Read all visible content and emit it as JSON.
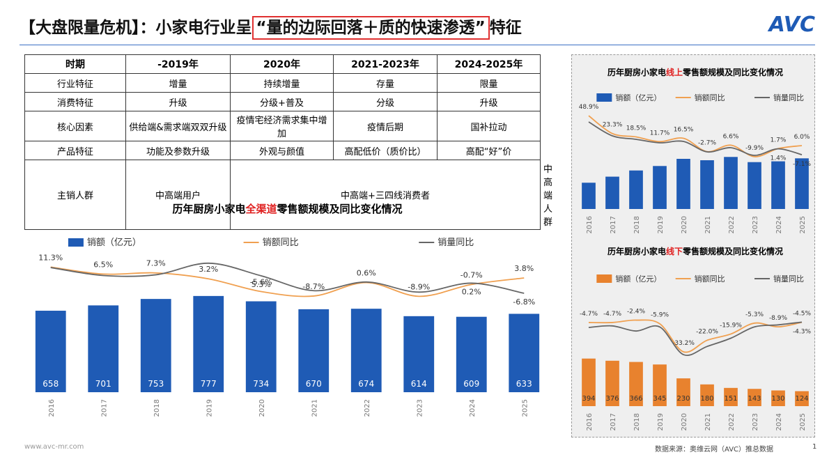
{
  "header": {
    "title_pre": "【大盘限量危机】：小家电行业呈",
    "title_highlight": "“量的边际回落＋质的快速渗透”",
    "title_post": "特征",
    "logo": "AVC"
  },
  "table": {
    "header": [
      "时期",
      "-2019年",
      "2020年",
      "2021-2023年",
      "2024-2025年"
    ],
    "rows": [
      [
        "行业特征",
        "增量",
        "持续增量",
        "存量",
        "限量"
      ],
      [
        "消费特征",
        "升级",
        "分级+普及",
        "分级",
        "升级"
      ],
      [
        "核心因素",
        "供给端&需求端双双升级",
        "疫情宅经济需求集中增加",
        "疫情后期",
        "国补拉动"
      ],
      [
        "产品特征",
        "功能及参数升级",
        "外观与颜值",
        "高配低价（质价比）",
        "高配“好”价"
      ],
      [
        "主销人群",
        "中高端用户",
        "中高端+三四线消费者",
        "中高端人群"
      ]
    ]
  },
  "chart_data": [
    {
      "type": "bar",
      "title_parts": [
        "历年厨房小家电",
        "全渠道",
        "零售额规模及同比变化情况"
      ],
      "categories": [
        "2016",
        "2017",
        "2018",
        "2019",
        "2020",
        "2021",
        "2022",
        "2023",
        "2024",
        "2025"
      ],
      "series": [
        {
          "name": "销额（亿元）",
          "color": "#1f5bb5",
          "values": [
            658,
            701,
            753,
            777,
            734,
            670,
            674,
            614,
            609,
            633
          ]
        },
        {
          "name": "销额同比",
          "type": "line",
          "axis": "y2",
          "color": "#f0a050",
          "values": [
            11.3,
            6.5,
            7.3,
            3.2,
            -5.6,
            -8.7,
            0.6,
            -8.9,
            -0.7,
            3.8
          ],
          "value_labels": [
            "11.3%",
            "6.5%",
            "7.3%",
            "3.2%",
            "-5.6%",
            "-8.7%",
            "0.6%",
            "-8.9%",
            "-0.7%",
            "3.8%"
          ]
        },
        {
          "name": "销量同比",
          "type": "line",
          "axis": "y2",
          "color": "#666666",
          "values": [
            11,
            5.5,
            6,
            14,
            5.3,
            -5,
            1,
            -6,
            0.2,
            -6.8
          ],
          "value_labels": [
            null,
            null,
            null,
            null,
            "5.3%",
            null,
            null,
            null,
            "0.2%",
            "-6.8%"
          ]
        }
      ],
      "ylim": [
        0,
        900
      ],
      "y2lim": [
        -15,
        25
      ]
    },
    {
      "type": "bar",
      "title_parts": [
        "历年厨房小家电",
        "线上",
        "零售额规模及同比变化情况"
      ],
      "categories": [
        "2016",
        "2017",
        "2018",
        "2019",
        "2020",
        "2021",
        "2022",
        "2023",
        "2024",
        "2025"
      ],
      "series": [
        {
          "name": "销额（亿元）",
          "color": "#1f5bb5",
          "values": [
            264,
            325,
            387,
            432,
            504,
            490,
            523,
            471,
            479,
            509
          ]
        },
        {
          "name": "销额同比",
          "type": "line",
          "axis": "y2",
          "color": "#f0a050",
          "values": [
            48.9,
            23.3,
            18.5,
            11.7,
            16.5,
            -2.7,
            6.6,
            -9.9,
            1.7,
            6.0
          ],
          "value_labels": [
            "48.9%",
            "23.3%",
            "18.5%",
            "11.7%",
            "16.5%",
            "-2.7%",
            "6.6%",
            "-9.9%",
            "1.7%",
            "6.0%"
          ]
        },
        {
          "name": "销量同比",
          "type": "line",
          "axis": "y2",
          "color": "#666666",
          "values": [
            40,
            20,
            15,
            10,
            12,
            -3,
            3,
            -8,
            1.4,
            -7.1
          ],
          "value_labels": [
            null,
            null,
            null,
            null,
            null,
            null,
            null,
            null,
            "1.4%",
            "-7.1%"
          ]
        }
      ],
      "ylim": [
        0,
        700
      ],
      "y2lim": [
        -20,
        60
      ]
    },
    {
      "type": "bar",
      "title_parts": [
        "历年厨房小家电",
        "线下",
        "零售额规模及同比变化情况"
      ],
      "categories": [
        "2016",
        "2017",
        "2018",
        "2019",
        "2020",
        "2021",
        "2022",
        "2023",
        "2024",
        "2025"
      ],
      "series": [
        {
          "name": "销额（亿元）",
          "color": "#e8822e",
          "values": [
            394,
            376,
            366,
            345,
            230,
            180,
            151,
            143,
            130,
            124
          ]
        },
        {
          "name": "销额同比",
          "type": "line",
          "axis": "y2",
          "color": "#f0a050",
          "values": [
            -4.7,
            -4.7,
            -2.4,
            -5.9,
            -33.2,
            -22.0,
            -15.9,
            -5.3,
            -8.9,
            -4.5
          ],
          "value_labels": [
            "-4.7%",
            "-4.7%",
            "-2.4%",
            "-5.9%",
            "-33.2%",
            "-22.0%",
            "-15.9%",
            "-5.3%",
            "-8.9%",
            "-4.5%"
          ]
        },
        {
          "name": "销量同比",
          "type": "line",
          "axis": "y2",
          "color": "#666666",
          "values": [
            -9.5,
            -8,
            -13,
            -9,
            -36,
            -28,
            -20,
            -9,
            -7,
            -4.3
          ],
          "value_labels": [
            null,
            null,
            null,
            null,
            null,
            null,
            null,
            null,
            null,
            "-4.3%"
          ]
        }
      ],
      "ylim": [
        0,
        450
      ],
      "y2lim": [
        -40,
        0
      ]
    }
  ],
  "footer": {
    "site": "www.avc-mr.com",
    "source": "数据来源：奥维云网（AVC）推总数据",
    "page": "1"
  }
}
